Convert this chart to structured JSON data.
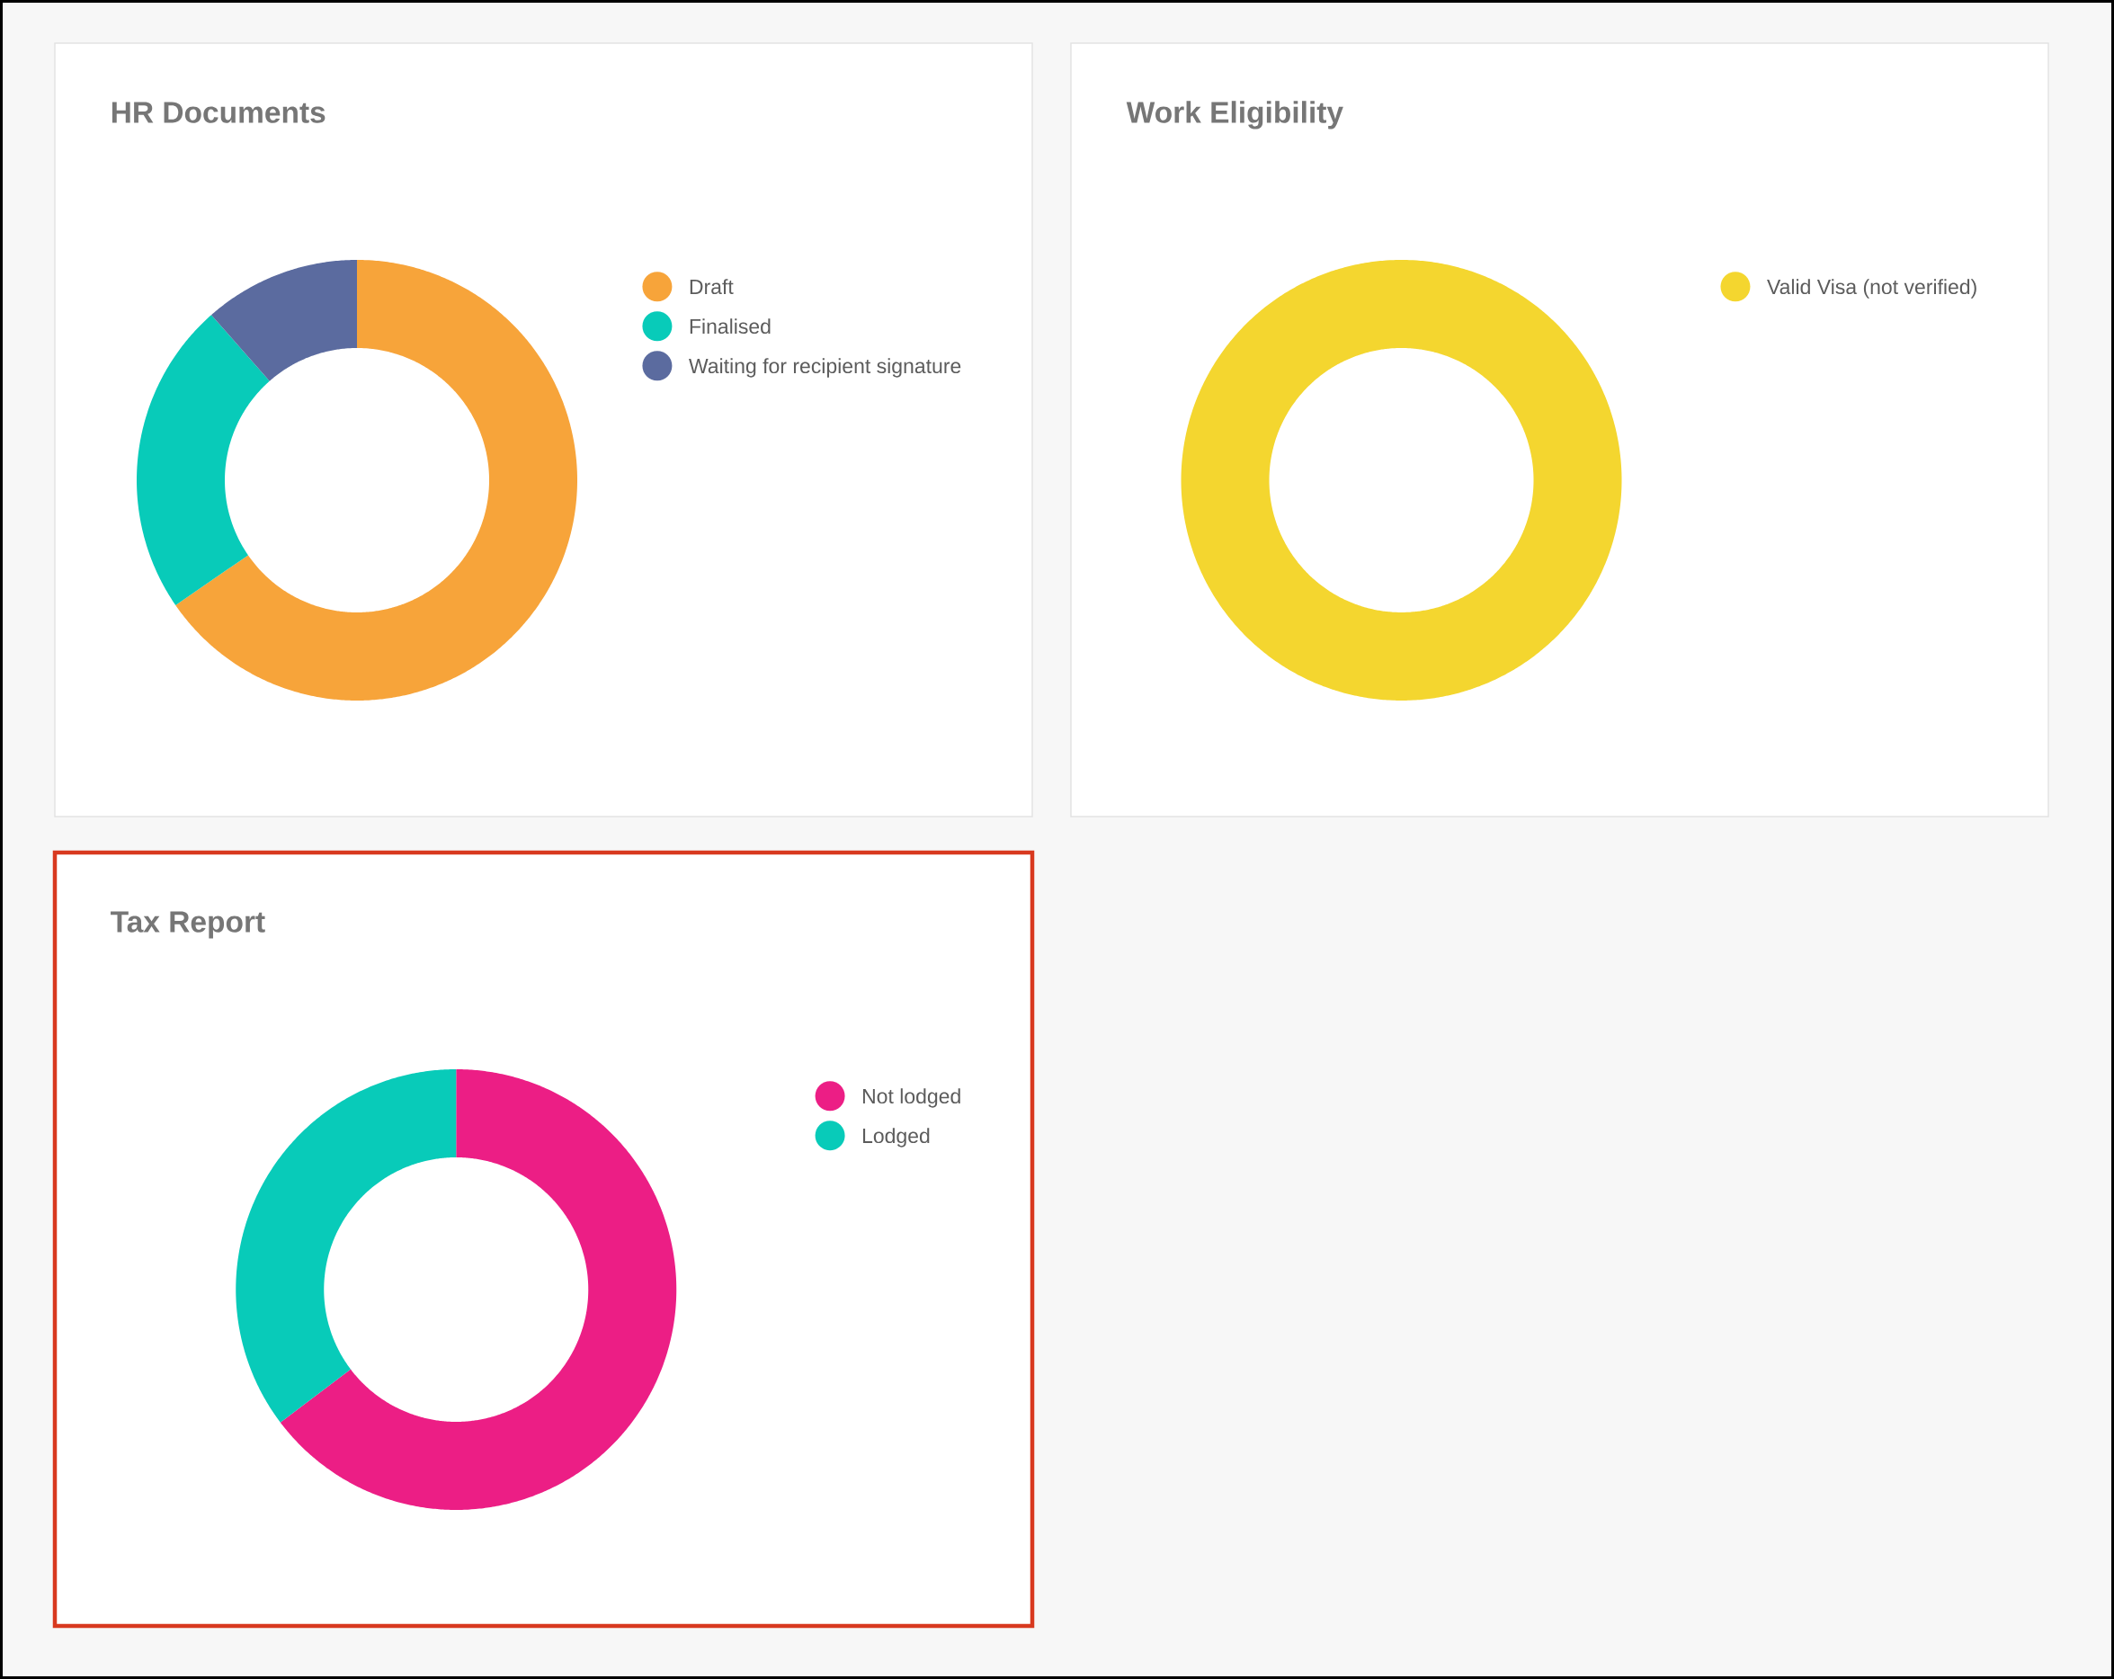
{
  "chart_data": [
    {
      "type": "donut",
      "title": "HR Documents",
      "categories": [
        "Draft",
        "Finalised",
        "Waiting for recipient signature"
      ],
      "values": [
        65.4,
        23.1,
        11.5
      ],
      "colors": [
        "#f7a43a",
        "#08cbb9",
        "#5b6b9f"
      ],
      "legend": "right"
    },
    {
      "type": "donut",
      "title": "Work Eligibility",
      "categories": [
        "Valid Visa (not verified)"
      ],
      "values": [
        100
      ],
      "colors": [
        "#f4d62f"
      ],
      "legend": "right"
    },
    {
      "type": "donut",
      "title": "Tax Report",
      "categories": [
        "Not lodged",
        "Lodged"
      ],
      "values": [
        64.7,
        35.3
      ],
      "colors": [
        "#ec1e85",
        "#08cbb9"
      ],
      "legend": "right"
    }
  ]
}
